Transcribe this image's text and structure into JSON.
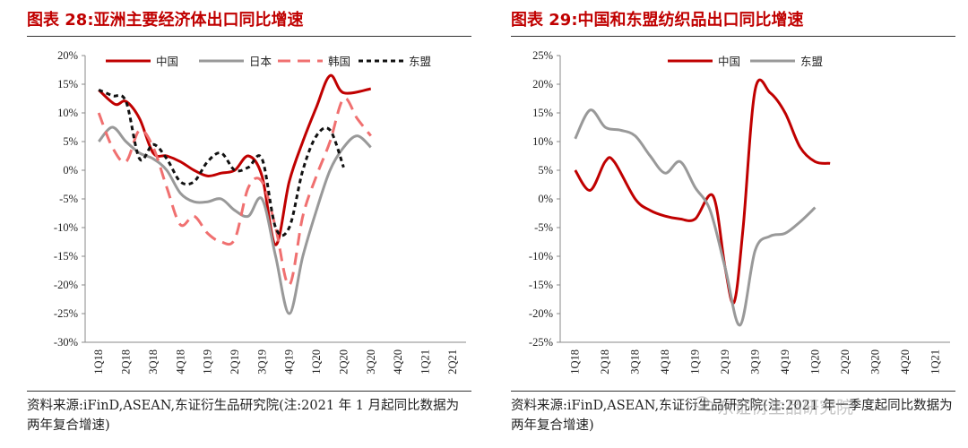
{
  "panels": {
    "left": {
      "title": "图表 28:亚洲主要经济体出口同比增速",
      "source": "资料来源:iFinD,ASEAN,东证衍生品研究院(注:2021 年 1 月起同比数据为两年复合增速)"
    },
    "right": {
      "title": "图表 29:中国和东盟纺织品出口同比增速",
      "source": "资料来源:iFinD,ASEAN,东证衍生品研究院(注:2021 年一季度起同比数据为两年复合增速)"
    }
  },
  "watermark": "东证衍生品研究院",
  "colors": {
    "china": "#c00000",
    "japan": "#999999",
    "korea": "#f07070",
    "asean": "#111111"
  },
  "chart_data": [
    {
      "type": "line",
      "x": [
        "1Q18",
        "2Q18",
        "3Q18",
        "4Q18",
        "1Q19",
        "2Q19",
        "3Q19",
        "4Q19",
        "1Q20",
        "2Q20",
        "3Q20",
        "4Q20",
        "1Q21",
        "2Q21"
      ],
      "ylim": [
        -30,
        20
      ],
      "yticks": [
        "20%",
        "15%",
        "10%",
        "5%",
        "0%",
        "-5%",
        "-10%",
        "-15%",
        "-20%",
        "-25%",
        "-30%"
      ],
      "legend_position": "top",
      "series": [
        {
          "name": "中国",
          "style": "solid",
          "color": "#c00000",
          "values": [
            [
              0,
              14
            ],
            [
              0.6,
              11.5
            ],
            [
              1,
              12
            ],
            [
              1.5,
              9
            ],
            [
              2,
              3
            ],
            [
              2.5,
              2.5
            ],
            [
              3,
              1.5
            ],
            [
              3.5,
              0
            ],
            [
              4,
              -1
            ],
            [
              4.5,
              -0.5
            ],
            [
              5,
              0
            ],
            [
              5.5,
              2.5
            ],
            [
              6,
              -1
            ],
            [
              6.5,
              -13
            ],
            [
              7,
              -2
            ],
            [
              7.5,
              5
            ],
            [
              8,
              11
            ],
            [
              8.5,
              16.5
            ],
            [
              9,
              13.5
            ],
            [
              10,
              14.2
            ]
          ],
          "xmap": "fine"
        },
        {
          "name": "日本",
          "style": "solid",
          "color": "#999999",
          "values": [
            [
              0,
              5
            ],
            [
              0.5,
              7.5
            ],
            [
              1,
              5
            ],
            [
              1.5,
              3
            ],
            [
              2,
              2
            ],
            [
              2.5,
              0
            ],
            [
              3,
              -4
            ],
            [
              3.5,
              -5.5
            ],
            [
              4,
              -5.5
            ],
            [
              4.5,
              -5
            ],
            [
              5,
              -7
            ],
            [
              5.5,
              -8
            ],
            [
              6,
              -5
            ],
            [
              6.5,
              -15
            ],
            [
              7,
              -25
            ],
            [
              7.5,
              -15
            ],
            [
              8,
              -7
            ],
            [
              8.5,
              0
            ],
            [
              9,
              4
            ],
            [
              9.5,
              6
            ],
            [
              10,
              4
            ]
          ],
          "xmap": "fine"
        },
        {
          "name": "韩国",
          "style": "dash",
          "color": "#f07070",
          "values": [
            [
              0,
              10
            ],
            [
              0.5,
              4
            ],
            [
              1,
              1.5
            ],
            [
              1.5,
              7
            ],
            [
              2,
              4
            ],
            [
              2.5,
              -3
            ],
            [
              3,
              -9.5
            ],
            [
              3.5,
              -8
            ],
            [
              4,
              -11
            ],
            [
              4.5,
              -12.5
            ],
            [
              5,
              -12
            ],
            [
              5.5,
              -3
            ],
            [
              6,
              -2
            ],
            [
              6.5,
              -10
            ],
            [
              7,
              -20
            ],
            [
              7.5,
              -8
            ],
            [
              8,
              -1
            ],
            [
              8.5,
              5
            ],
            [
              9,
              12.5
            ],
            [
              9.5,
              9
            ],
            [
              10,
              6
            ]
          ],
          "xmap": "fine"
        },
        {
          "name": "东盟",
          "style": "dashdot",
          "color": "#111111",
          "values": [
            [
              0,
              14
            ],
            [
              0.5,
              13
            ],
            [
              1,
              12
            ],
            [
              1.5,
              2
            ],
            [
              2,
              4.5
            ],
            [
              2.5,
              2
            ],
            [
              3,
              -2
            ],
            [
              3.5,
              -2
            ],
            [
              4,
              1.5
            ],
            [
              4.5,
              3
            ],
            [
              5,
              0
            ],
            [
              5.5,
              0.5
            ],
            [
              6,
              2
            ],
            [
              6.5,
              -10
            ],
            [
              7,
              -10
            ],
            [
              7.5,
              0
            ],
            [
              8,
              6
            ],
            [
              8.5,
              7
            ],
            [
              9,
              0.5
            ]
          ],
          "xmap": "fine"
        }
      ]
    },
    {
      "type": "line",
      "x": [
        "1Q18",
        "2Q18",
        "3Q18",
        "4Q18",
        "1Q19",
        "2Q19",
        "3Q19",
        "4Q19",
        "1Q20",
        "2Q20",
        "3Q20",
        "4Q20",
        "1Q21"
      ],
      "ylim": [
        -25,
        25
      ],
      "yticks": [
        "25%",
        "20%",
        "15%",
        "10%",
        "5%",
        "0%",
        "-5%",
        "-10%",
        "-15%",
        "-20%",
        "-25%"
      ],
      "legend_position": "top",
      "series": [
        {
          "name": "中国",
          "style": "solid",
          "color": "#c00000",
          "values": [
            [
              0,
              5
            ],
            [
              0.5,
              1.5
            ],
            [
              1,
              6.5
            ],
            [
              1.3,
              6.5
            ],
            [
              2,
              0
            ],
            [
              2.5,
              -2
            ],
            [
              3,
              -3
            ],
            [
              3.5,
              -3.5
            ],
            [
              4,
              -3.5
            ],
            [
              4.6,
              0.5
            ],
            [
              5,
              -12
            ],
            [
              5.3,
              -18
            ],
            [
              5.6,
              -5
            ],
            [
              6,
              19
            ],
            [
              6.5,
              18.5
            ],
            [
              7,
              15
            ],
            [
              7.5,
              9
            ],
            [
              8,
              6.5
            ],
            [
              8.5,
              6.2
            ]
          ],
          "xmap": "fine"
        },
        {
          "name": "东盟",
          "style": "solid",
          "color": "#999999",
          "values": [
            [
              0,
              10.5
            ],
            [
              0.5,
              15.5
            ],
            [
              1,
              12.5
            ],
            [
              1.5,
              12
            ],
            [
              2,
              11
            ],
            [
              2.5,
              7.5
            ],
            [
              3,
              4.5
            ],
            [
              3.5,
              6.5
            ],
            [
              4,
              2
            ],
            [
              4.5,
              -2
            ],
            [
              5,
              -12
            ],
            [
              5.5,
              -22
            ],
            [
              6,
              -9
            ],
            [
              6.5,
              -6.5
            ],
            [
              7,
              -6
            ],
            [
              7.5,
              -4
            ],
            [
              8,
              -1.5
            ]
          ],
          "xmap": "fine"
        }
      ]
    }
  ]
}
